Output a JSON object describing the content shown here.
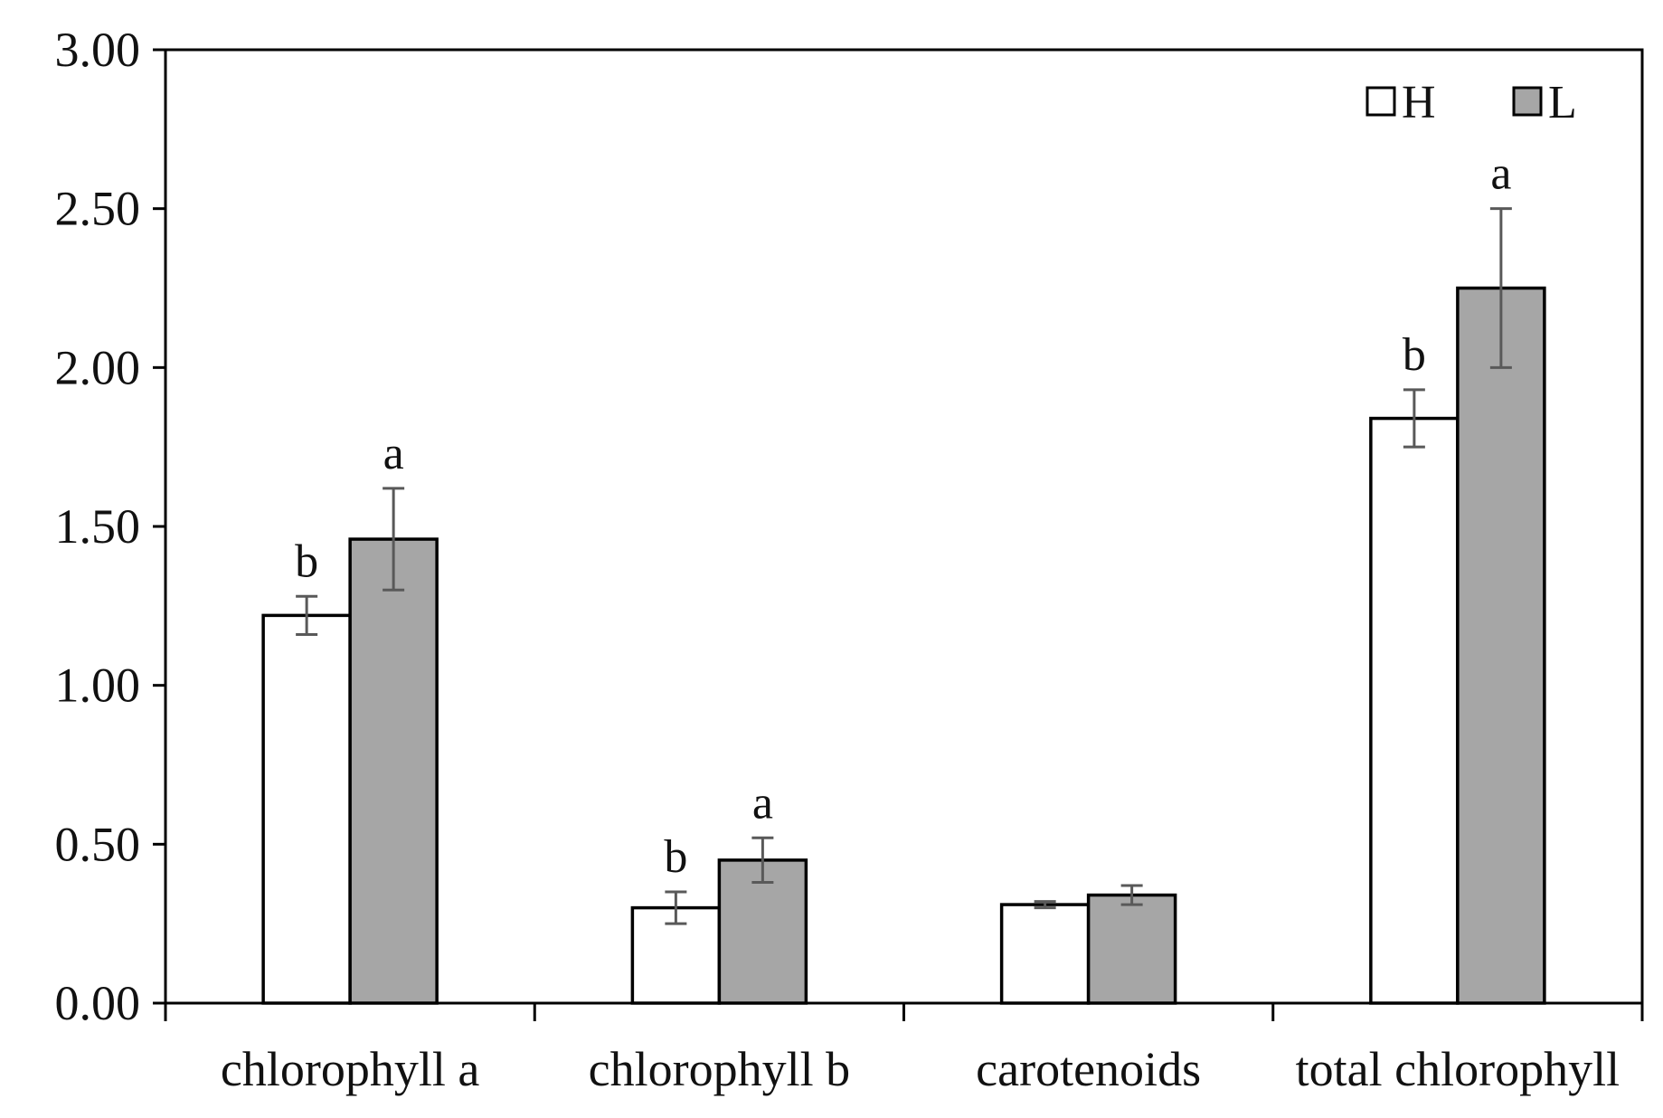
{
  "chart_data": {
    "type": "bar",
    "categories": [
      "chlorophyll a",
      "chlorophyll b",
      "carotenoids",
      "total chlorophyll"
    ],
    "series": [
      {
        "name": "H",
        "color": "#ffffff",
        "values": [
          1.22,
          0.3,
          0.31,
          1.84
        ],
        "errors": [
          0.06,
          0.05,
          0.01,
          0.09
        ],
        "significance": [
          "b",
          "b",
          "",
          "b"
        ]
      },
      {
        "name": "L",
        "color": "#a6a6a6",
        "values": [
          1.46,
          0.45,
          0.34,
          2.25
        ],
        "errors": [
          0.16,
          0.07,
          0.03,
          0.25
        ],
        "significance": [
          "a",
          "a",
          "",
          "a"
        ]
      }
    ],
    "title": "",
    "xlabel": "",
    "ylabel": "",
    "ylim": [
      0,
      3.0
    ],
    "yticks": [
      "0.00",
      "0.50",
      "1.00",
      "1.50",
      "2.00",
      "2.50",
      "3.00"
    ],
    "grid": false,
    "legend_position": "top-right",
    "error_bar_color": "#595959"
  }
}
